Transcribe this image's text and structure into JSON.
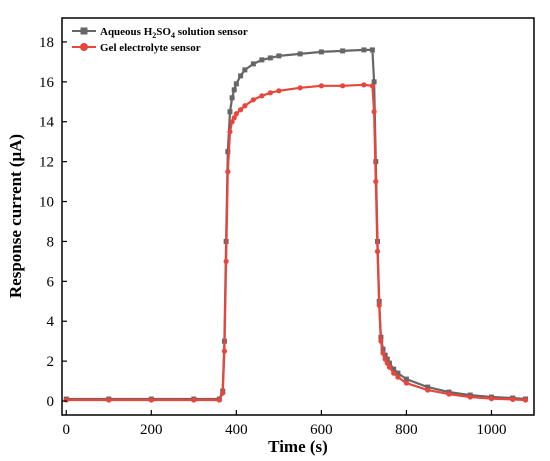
{
  "chart_data": {
    "type": "line",
    "xlabel": "Time (s)",
    "ylabel": "Response current (μA)",
    "xlim": [
      -10,
      1100
    ],
    "ylim": [
      -0.7,
      19.2
    ],
    "x_ticks": [
      0,
      200,
      400,
      600,
      800,
      1000
    ],
    "y_ticks": [
      0,
      2,
      4,
      6,
      8,
      10,
      12,
      14,
      16,
      18
    ],
    "legend_position": "top-left",
    "series": [
      {
        "name": "Aqueous H2SO4 solution sensor",
        "name_parts": {
          "a": "Aqueous H",
          "sub1": "2",
          "b": "SO",
          "sub2": "4",
          "c": " solution sensor"
        },
        "color": "#666666",
        "marker": "square",
        "x": [
          0,
          100,
          200,
          300,
          360,
          368,
          372,
          376,
          380,
          385,
          390,
          395,
          400,
          410,
          420,
          440,
          460,
          480,
          500,
          550,
          600,
          650,
          700,
          720,
          724,
          728,
          732,
          736,
          740,
          745,
          750,
          755,
          760,
          770,
          780,
          800,
          850,
          900,
          950,
          1000,
          1050,
          1080
        ],
        "y": [
          0.1,
          0.1,
          0.1,
          0.1,
          0.1,
          0.5,
          3.0,
          8.0,
          12.5,
          14.5,
          15.2,
          15.6,
          15.9,
          16.3,
          16.6,
          16.9,
          17.1,
          17.2,
          17.3,
          17.4,
          17.5,
          17.55,
          17.6,
          17.6,
          16.0,
          12.0,
          8.0,
          5.0,
          3.2,
          2.6,
          2.3,
          2.1,
          1.9,
          1.6,
          1.4,
          1.1,
          0.7,
          0.45,
          0.3,
          0.2,
          0.15,
          0.1
        ]
      },
      {
        "name": "Gel electrolyte sensor",
        "color": "#e8453c",
        "marker": "circle",
        "x": [
          0,
          100,
          200,
          300,
          360,
          368,
          372,
          376,
          380,
          385,
          390,
          395,
          400,
          410,
          420,
          440,
          460,
          480,
          500,
          550,
          600,
          650,
          700,
          720,
          724,
          728,
          732,
          736,
          740,
          745,
          750,
          755,
          760,
          770,
          780,
          800,
          850,
          900,
          950,
          1000,
          1050,
          1080
        ],
        "y": [
          0.05,
          0.05,
          0.05,
          0.05,
          0.05,
          0.4,
          2.5,
          7.0,
          11.5,
          13.5,
          14.0,
          14.2,
          14.4,
          14.6,
          14.8,
          15.1,
          15.3,
          15.45,
          15.55,
          15.7,
          15.8,
          15.8,
          15.85,
          15.8,
          14.5,
          11.0,
          7.5,
          4.8,
          3.0,
          2.4,
          2.1,
          1.9,
          1.7,
          1.4,
          1.2,
          0.9,
          0.55,
          0.35,
          0.2,
          0.12,
          0.08,
          0.05
        ]
      }
    ]
  }
}
